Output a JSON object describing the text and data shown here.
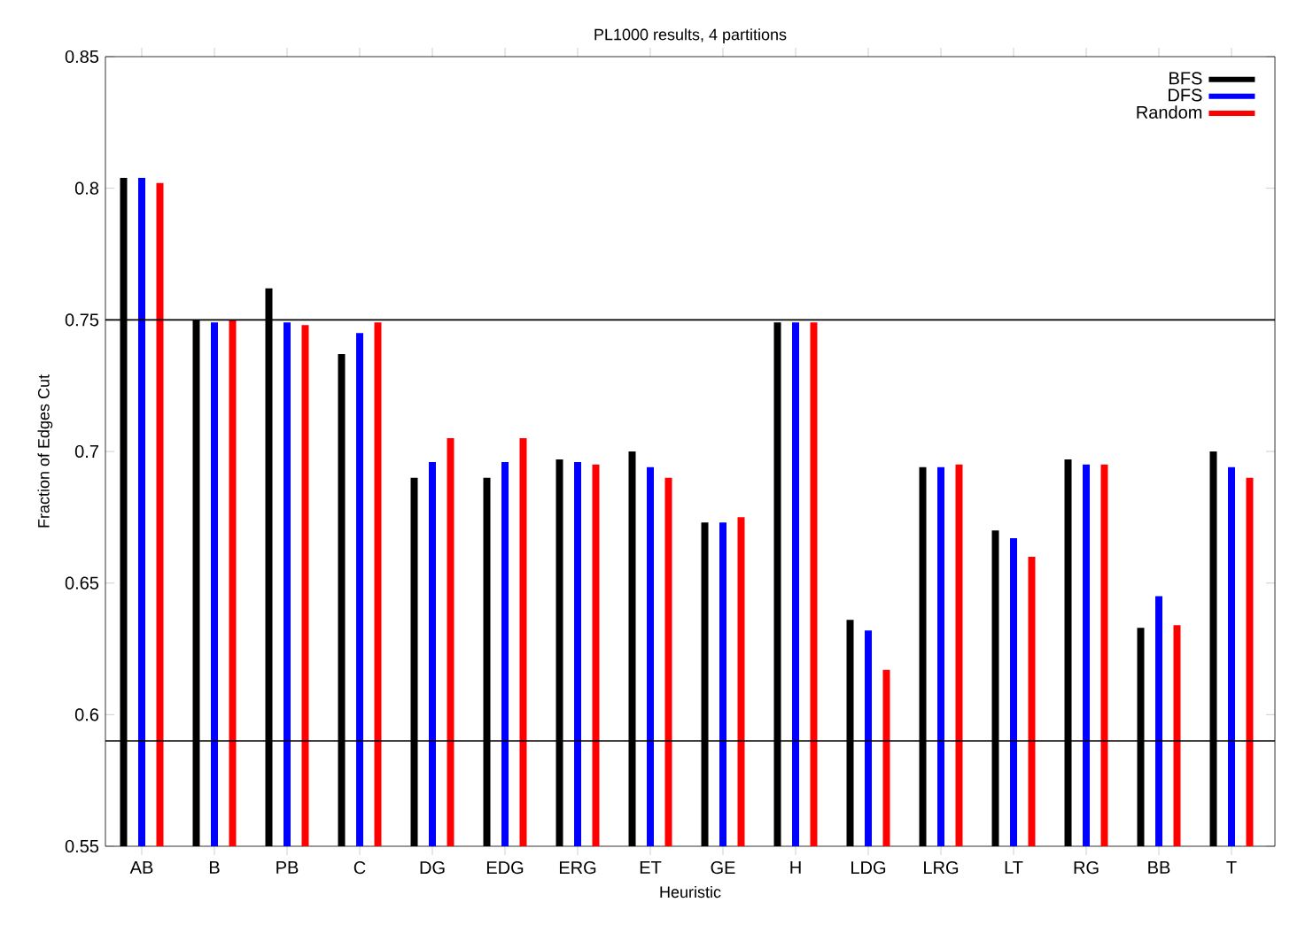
{
  "chart_data": {
    "type": "bar",
    "title": "PL1000 results, 4 partitions",
    "xlabel": "Heuristic",
    "ylabel": "Fraction of Edges Cut",
    "categories": [
      "AB",
      "B",
      "PB",
      "C",
      "DG",
      "EDG",
      "ERG",
      "ET",
      "GE",
      "H",
      "LDG",
      "LRG",
      "LT",
      "RG",
      "BB",
      "T"
    ],
    "series": [
      {
        "name": "BFS",
        "color": "#000000",
        "values": [
          0.804,
          0.75,
          0.762,
          0.737,
          0.69,
          0.69,
          0.697,
          0.7,
          0.673,
          0.749,
          0.636,
          0.694,
          0.67,
          0.697,
          0.633,
          0.7
        ]
      },
      {
        "name": "DFS",
        "color": "#0000ff",
        "values": [
          0.804,
          0.749,
          0.749,
          0.745,
          0.696,
          0.696,
          0.696,
          0.694,
          0.673,
          0.749,
          0.632,
          0.694,
          0.667,
          0.695,
          0.645,
          0.694
        ]
      },
      {
        "name": "Random",
        "color": "#ff0000",
        "values": [
          0.802,
          0.75,
          0.748,
          0.749,
          0.705,
          0.705,
          0.695,
          0.69,
          0.675,
          0.749,
          0.617,
          0.695,
          0.66,
          0.695,
          0.634,
          0.69
        ]
      }
    ],
    "ylim": [
      0.55,
      0.85
    ],
    "yticks": [
      0.55,
      0.6,
      0.65,
      0.7,
      0.75,
      0.8,
      0.85
    ],
    "ref_lines": [
      {
        "axis": "y",
        "value": 0.75,
        "color": "#000000"
      },
      {
        "axis": "y",
        "value": 0.59,
        "color": "#000000"
      }
    ],
    "grid": false,
    "legend": "top right"
  }
}
